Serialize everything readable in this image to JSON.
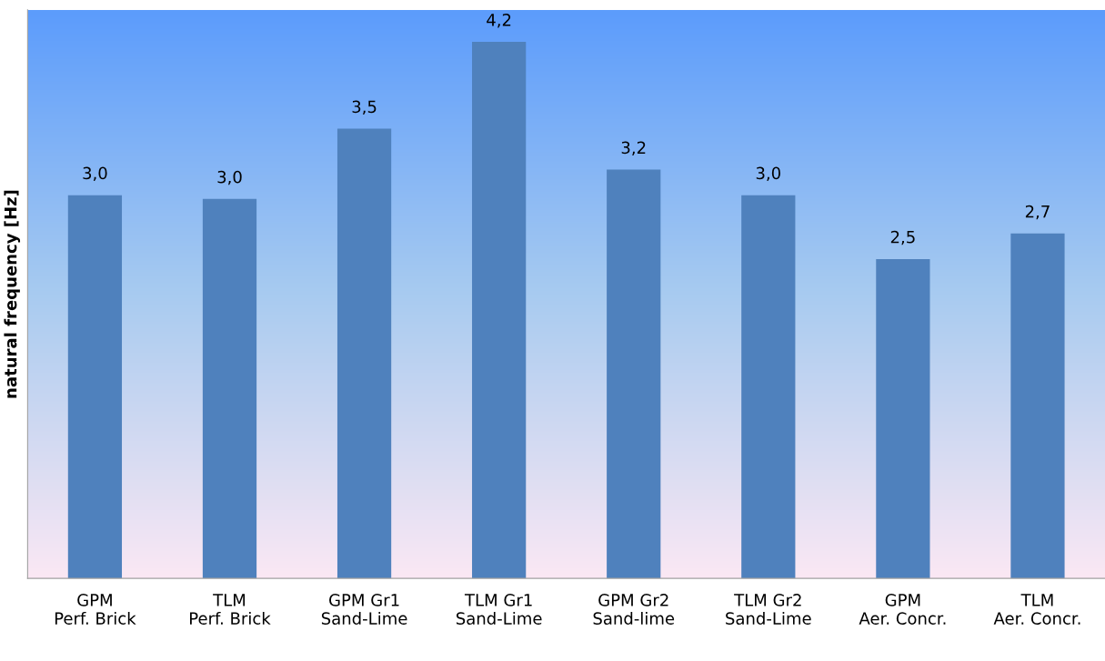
{
  "chart_data": {
    "type": "bar",
    "ylabel": "natural frequency [Hz]",
    "categories": [
      "GPM\nPerf. Brick",
      "TLM\nPerf. Brick",
      "GPM Gr1\nSand-Lime",
      "TLM Gr1\nSand-Lime",
      "GPM Gr2\nSand-lime",
      "TLM Gr2\nSand-Lime",
      "GPM\nAer. Concr.",
      "TLM\nAer. Concr."
    ],
    "values": [
      3.0,
      2.97,
      3.52,
      4.2,
      3.2,
      3.0,
      2.5,
      2.7
    ],
    "value_labels": [
      "3,0",
      "3,0",
      "3,5",
      "4,2",
      "3,2",
      "3,0",
      "2,5",
      "2,7"
    ],
    "color": "#4f81bd",
    "ylim": [
      0,
      4.45
    ],
    "tick_labels": "x",
    "grid": false,
    "legend": false
  }
}
